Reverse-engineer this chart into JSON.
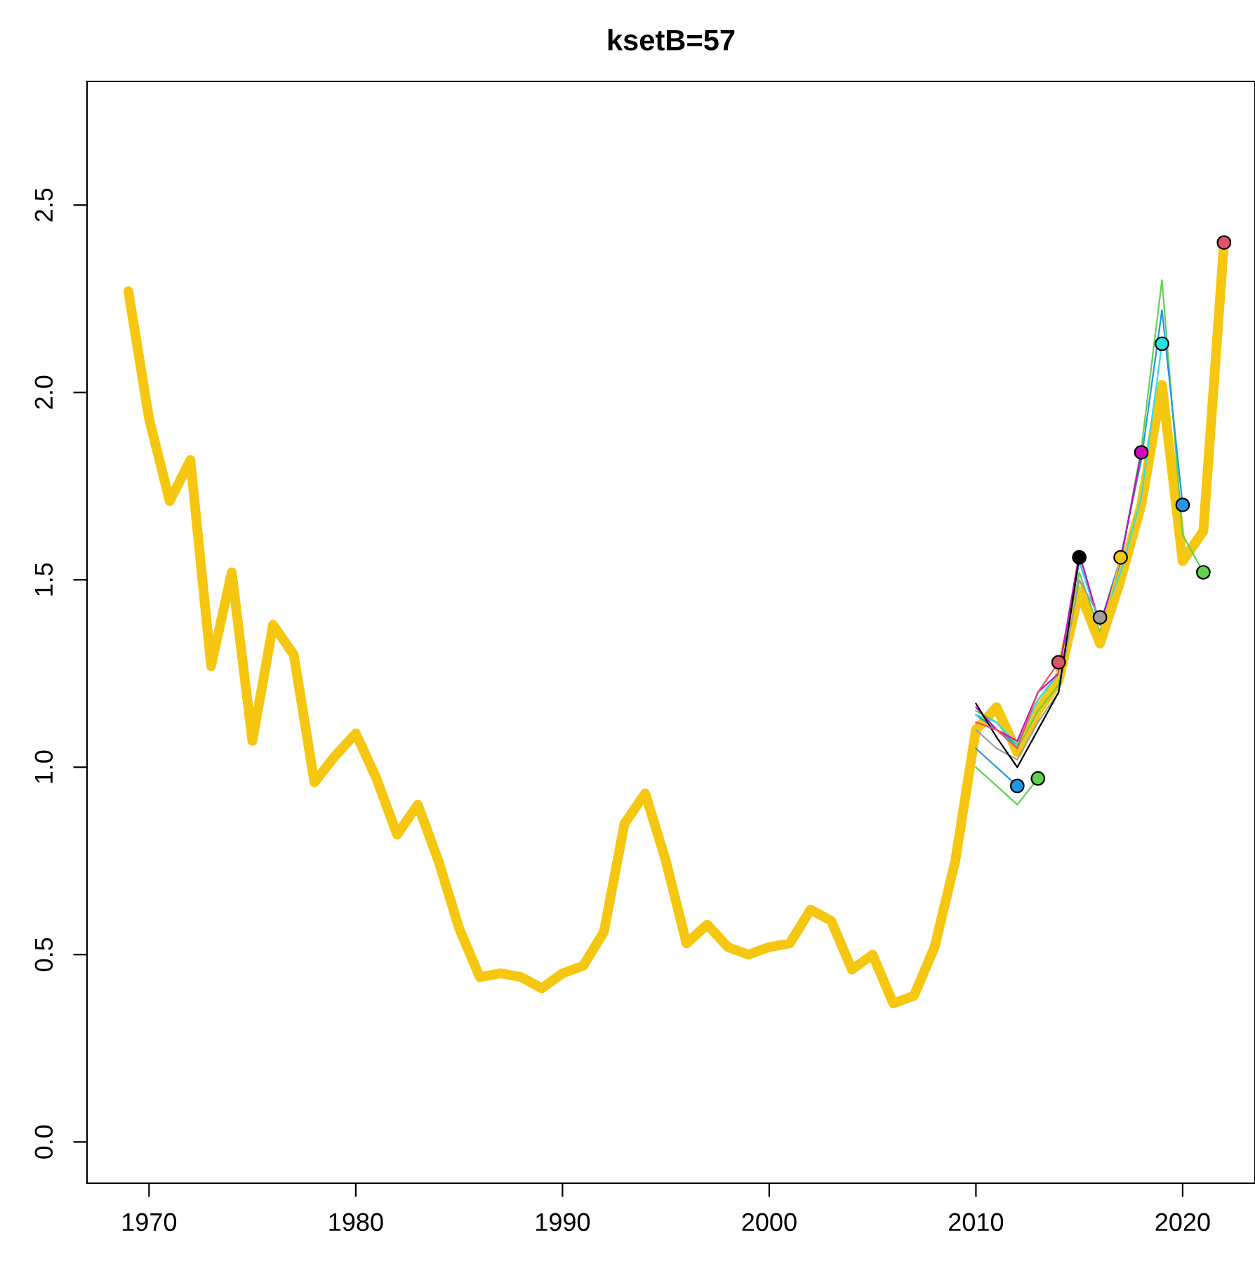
{
  "chart_data": {
    "type": "line",
    "title": "ksetB=57",
    "xlim": [
      1967.0,
      2023.5
    ],
    "ylim": [
      -0.11,
      2.83
    ],
    "xticks": [
      1970,
      1980,
      1990,
      2000,
      2010,
      2020
    ],
    "yticks": [
      {
        "value": 0,
        "label": "0.0"
      },
      {
        "value": 0.5,
        "label": "0.5"
      },
      {
        "value": 1,
        "label": "1.0"
      },
      {
        "value": 1.5,
        "label": "1.5"
      },
      {
        "value": 2,
        "label": "2.0"
      },
      {
        "value": 2.5,
        "label": "2.5"
      }
    ],
    "grid": false,
    "legend": false,
    "series": [
      {
        "color": "#f5c710",
        "x": [
          1969,
          1970,
          1971,
          1972,
          1973,
          1974,
          1975,
          1976,
          1977,
          1978,
          1979,
          1980,
          1981,
          1982,
          1983,
          1984,
          1985,
          1986,
          1987,
          1988,
          1989,
          1990,
          1991,
          1992,
          1993,
          1994,
          1995,
          1996,
          1997,
          1998,
          1999,
          2000,
          2001,
          2002,
          2003,
          2004,
          2005,
          2006,
          2007,
          2008,
          2009,
          2010,
          2011,
          2012,
          2013,
          2014,
          2015,
          2016,
          2017,
          2018,
          2019,
          2020,
          2021,
          2022
        ],
        "values": [
          2.27,
          1.93,
          1.71,
          1.82,
          1.27,
          1.52,
          1.07,
          1.38,
          1.3,
          0.96,
          1.03,
          1.09,
          0.97,
          0.82,
          0.9,
          0.75,
          0.57,
          0.44,
          0.45,
          0.44,
          0.41,
          0.45,
          0.47,
          0.56,
          0.85,
          0.93,
          0.75,
          0.53,
          0.58,
          0.52,
          0.5,
          0.52,
          0.53,
          0.62,
          0.59,
          0.46,
          0.5,
          0.37,
          0.39,
          0.52,
          0.75,
          1.1,
          1.16,
          1.04,
          1.15,
          1.23,
          1.47,
          1.33,
          1.5,
          1.7,
          2.02,
          1.55,
          1.63,
          2.4
        ]
      },
      {
        "color": "#61d04f",
        "x": [
          2010,
          2011,
          2012,
          2013,
          2014,
          2015,
          2016,
          2017,
          2018,
          2019,
          2020,
          2021
        ],
        "values": [
          1.15,
          1.12,
          1.05,
          1.15,
          1.22,
          1.52,
          1.36,
          1.55,
          1.85,
          2.3,
          1.62,
          1.52
        ]
      },
      {
        "color": "#2297e6",
        "x": [
          2010,
          2011,
          2012,
          2013,
          2014,
          2015,
          2016,
          2017,
          2018,
          2019,
          2020
        ],
        "values": [
          1.14,
          1.1,
          1.06,
          1.18,
          1.25,
          1.55,
          1.38,
          1.56,
          1.82,
          2.22,
          1.7
        ]
      },
      {
        "color": "#28e2e5",
        "x": [
          2010,
          2011,
          2012,
          2013,
          2014,
          2015,
          2016,
          2017,
          2018,
          2019
        ],
        "values": [
          1.14,
          1.12,
          1.06,
          1.18,
          1.25,
          1.55,
          1.38,
          1.52,
          1.72,
          2.13
        ]
      },
      {
        "color": "#cd0bbc",
        "x": [
          2010,
          2011,
          2012,
          2013,
          2014,
          2015,
          2016,
          2017,
          2018
        ],
        "values": [
          1.16,
          1.1,
          1.07,
          1.2,
          1.25,
          1.57,
          1.38,
          1.55,
          1.84
        ]
      },
      {
        "color": "#f5c710",
        "x": [
          2010,
          2011,
          2012,
          2013,
          2014,
          2015,
          2016,
          2017
        ],
        "values": [
          1.12,
          1.1,
          1.05,
          1.17,
          1.24,
          1.5,
          1.35,
          1.56
        ]
      },
      {
        "color": "#9e9e9e",
        "x": [
          2010,
          2011,
          2012,
          2013,
          2014,
          2015,
          2016
        ],
        "values": [
          1.1,
          1.05,
          1.02,
          1.12,
          1.2,
          1.5,
          1.4
        ]
      },
      {
        "color": "#000000",
        "x": [
          2010,
          2011,
          2012,
          2013,
          2014,
          2015
        ],
        "values": [
          1.17,
          1.08,
          1.0,
          1.1,
          1.2,
          1.56
        ]
      },
      {
        "color": "#df536b",
        "x": [
          2010,
          2011,
          2012,
          2013,
          2014
        ],
        "values": [
          1.12,
          1.1,
          1.05,
          1.2,
          1.28
        ]
      },
      {
        "color": "#61d04f",
        "x": [
          2010,
          2011,
          2012,
          2013
        ],
        "values": [
          1.0,
          0.95,
          0.9,
          0.97
        ]
      },
      {
        "color": "#2297e6",
        "x": [
          2010,
          2011,
          2012
        ],
        "values": [
          1.05,
          1.0,
          0.95
        ]
      },
      {
        "type": "scatter",
        "marker": "circle",
        "x": [
          2012,
          2013,
          2014,
          2015,
          2016,
          2017,
          2018,
          2019,
          2020,
          2021,
          2022
        ],
        "values": [
          0.95,
          0.97,
          1.28,
          1.56,
          1.4,
          1.56,
          1.84,
          2.13,
          1.7,
          1.52,
          2.4
        ],
        "colors": [
          "#2297e6",
          "#61d04f",
          "#df536b",
          "#000000",
          "#9e9e9e",
          "#f5c710",
          "#cd0bbc",
          "#28e2e5",
          "#2297e6",
          "#61d04f",
          "#df536b"
        ]
      }
    ]
  }
}
